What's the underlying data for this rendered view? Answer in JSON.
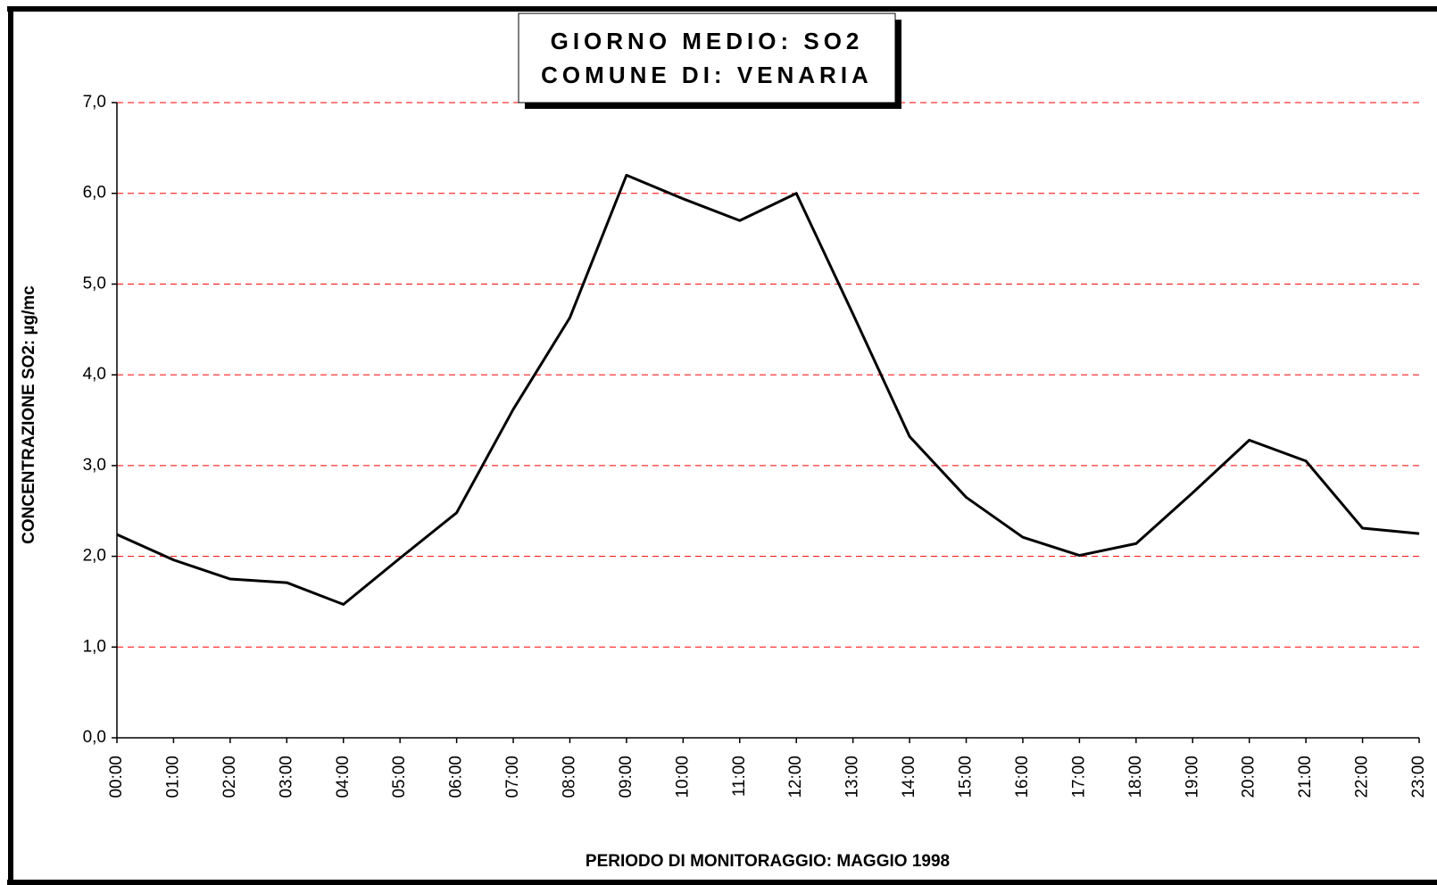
{
  "chart_data": {
    "type": "line",
    "title": "GIORNO MEDIO: SO2",
    "subtitle": "COMUNE DI: VENARIA",
    "y_label": "CONCENTRAZIONE SO2: µg/mc",
    "x_label": "PERIODO DI MONITORAGGIO: MAGGIO 1998",
    "categories": [
      "00:00",
      "01:00",
      "02:00",
      "03:00",
      "04:00",
      "05:00",
      "06:00",
      "07:00",
      "08:00",
      "09:00",
      "10:00",
      "11:00",
      "12:00",
      "13:00",
      "14:00",
      "15:00",
      "16:00",
      "17:00",
      "18:00",
      "19:00",
      "20:00",
      "21:00",
      "22:00",
      "23:00"
    ],
    "series": [
      {
        "name": "SO2",
        "color": "#000000",
        "values": [
          2.24,
          1.96,
          1.75,
          1.71,
          1.47,
          1.98,
          2.48,
          3.62,
          4.63,
          6.2,
          5.94,
          5.7,
          6.0,
          4.67,
          3.32,
          2.65,
          2.21,
          2.01,
          2.14,
          2.7,
          3.28,
          3.05,
          2.31,
          2.25
        ]
      }
    ],
    "ylim": [
      0,
      7
    ],
    "yticks": [
      {
        "value": 0,
        "label": "0,0"
      },
      {
        "value": 1,
        "label": "1,0"
      },
      {
        "value": 2,
        "label": "2,0"
      },
      {
        "value": 3,
        "label": "3,0"
      },
      {
        "value": 4,
        "label": "4,0"
      },
      {
        "value": 5,
        "label": "5,0"
      },
      {
        "value": 6,
        "label": "6,0"
      },
      {
        "value": 7,
        "label": "7,0"
      }
    ],
    "grid": true,
    "grid_color": "#ff0000"
  }
}
